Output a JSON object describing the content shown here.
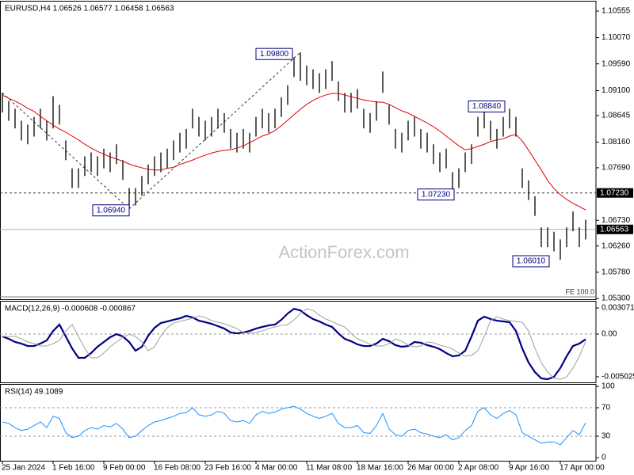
{
  "chart_data": [
    {
      "type": "ohlc",
      "title": "EURUSD,H4 1.06526 1.06577 1.06458 1.06563",
      "watermark": "ActionForex.com",
      "bar_color": "#000000",
      "categories": [
        "25 Jan 2024",
        null,
        null,
        null,
        null,
        null,
        null,
        null,
        "1 Feb 16:00",
        null,
        null,
        null,
        null,
        null,
        null,
        null,
        "9 Feb 00:00",
        null,
        null,
        null,
        null,
        null,
        null,
        null,
        "16 Feb 08:00",
        null,
        null,
        null,
        null,
        null,
        null,
        null,
        "23 Feb 16:00",
        null,
        null,
        null,
        null,
        null,
        null,
        null,
        "4 Mar 00:00",
        null,
        null,
        null,
        null,
        null,
        null,
        null,
        "11 Mar 08:00",
        null,
        null,
        null,
        null,
        null,
        null,
        null,
        "18 Mar 16:00",
        null,
        null,
        null,
        null,
        null,
        null,
        null,
        "26 Mar 00:00",
        null,
        null,
        null,
        null,
        null,
        null,
        null,
        "2 Apr 08:00",
        null,
        null,
        null,
        null,
        null,
        null,
        null,
        "9 Apr 16:00",
        null,
        null,
        null,
        null,
        null,
        null,
        null,
        "17 Apr 00:00",
        null,
        null,
        null,
        null
      ],
      "high": [
        1.0906,
        1.0891,
        1.0877,
        1.0855,
        1.0848,
        1.0862,
        1.0877,
        1.0855,
        1.09,
        1.0884,
        1.0819,
        1.0768,
        1.0768,
        1.079,
        1.0797,
        1.079,
        1.0804,
        1.0797,
        1.0812,
        1.0783,
        1.0732,
        1.0732,
        1.0754,
        1.0775,
        1.079,
        1.0797,
        1.0804,
        1.0819,
        1.0833,
        1.084,
        1.0877,
        1.0862,
        1.0855,
        1.0862,
        1.0877,
        1.0869,
        1.084,
        1.0833,
        1.084,
        1.0833,
        1.0862,
        1.0877,
        1.0869,
        1.0877,
        1.0898,
        1.092,
        1.0971,
        1.098,
        1.0956,
        1.0949,
        1.0942,
        1.0949,
        1.0964,
        1.0927,
        1.0906,
        1.0906,
        1.0913,
        1.0877,
        1.0869,
        1.0891,
        1.0945,
        1.0884,
        1.084,
        1.0833,
        1.0855,
        1.0862,
        1.084,
        1.0833,
        1.0812,
        1.0797,
        1.0804,
        1.0761,
        1.0768,
        1.0797,
        1.0812,
        1.0862,
        1.0884,
        1.0855,
        1.084,
        1.0862,
        1.0877,
        1.0862,
        1.0768,
        1.0746,
        1.0717,
        1.066,
        1.066,
        1.0652,
        1.0638,
        1.066,
        1.0689,
        1.066,
        1.0674
      ],
      "low": [
        1.087,
        1.0855,
        1.0841,
        1.0819,
        1.0812,
        1.0826,
        1.0841,
        1.0819,
        1.0841,
        1.0848,
        1.0783,
        1.0732,
        1.0732,
        1.0754,
        1.0761,
        1.0754,
        1.0768,
        1.0761,
        1.0776,
        1.0747,
        1.0694,
        1.07,
        1.0718,
        1.0739,
        1.0754,
        1.0761,
        1.0768,
        1.0783,
        1.0797,
        1.0804,
        1.0841,
        1.0826,
        1.0819,
        1.0826,
        1.0841,
        1.0833,
        1.0804,
        1.0797,
        1.0804,
        1.0797,
        1.0826,
        1.0841,
        1.0833,
        1.0841,
        1.0862,
        1.0884,
        1.0935,
        1.0928,
        1.092,
        1.0913,
        1.0906,
        1.0913,
        1.0928,
        1.0891,
        1.087,
        1.087,
        1.0877,
        1.0841,
        1.0833,
        1.0855,
        1.0906,
        1.0848,
        1.0804,
        1.0797,
        1.0819,
        1.0826,
        1.0804,
        1.0797,
        1.0776,
        1.0761,
        1.0768,
        1.0723,
        1.0732,
        1.0761,
        1.0776,
        1.0826,
        1.0841,
        1.0819,
        1.0804,
        1.0826,
        1.0841,
        1.0826,
        1.0732,
        1.071,
        1.0681,
        1.0624,
        1.0624,
        1.0616,
        1.0601,
        1.0624,
        1.0653,
        1.0624,
        1.0638
      ],
      "ma": {
        "color": "#e00000",
        "values": [
          1.0902,
          1.0896,
          1.0891,
          1.0885,
          1.0878,
          1.0872,
          1.0863,
          1.0855,
          1.0847,
          1.084,
          1.0834,
          1.0827,
          1.082,
          1.0812,
          1.0805,
          1.0799,
          1.0794,
          1.0789,
          1.0785,
          1.0781,
          1.0776,
          1.0772,
          1.0769,
          1.0766,
          1.0765,
          1.0765,
          1.0768,
          1.077,
          1.0775,
          1.0779,
          1.0783,
          1.0788,
          1.0792,
          1.0796,
          1.0799,
          1.0801,
          1.0802,
          1.0805,
          1.0809,
          1.0815,
          1.0821,
          1.0827,
          1.0831,
          1.0837,
          1.0846,
          1.0856,
          1.0866,
          1.0876,
          1.0885,
          1.0892,
          1.0898,
          1.0902,
          1.0905,
          1.0905,
          1.0902,
          1.0899,
          1.0896,
          1.0893,
          1.0891,
          1.0889,
          1.0889,
          1.0885,
          1.0879,
          1.0873,
          1.0869,
          1.0863,
          1.0857,
          1.0851,
          1.0844,
          1.0836,
          1.0827,
          1.0818,
          1.0809,
          1.0802,
          1.0804,
          1.0808,
          1.0812,
          1.0817,
          1.082,
          1.0822,
          1.0827,
          1.083,
          1.0818,
          1.0801,
          1.0783,
          1.0765,
          1.0746,
          1.0731,
          1.072,
          1.0711,
          1.0704,
          1.0698,
          1.0692
        ]
      },
      "annotations": [
        {
          "text": "1.09800",
          "value": 1.098
        },
        {
          "text": "1.06940",
          "value": 1.0694
        },
        {
          "text": "1.07230",
          "value": 1.0723
        },
        {
          "text": "1.08840",
          "value": 1.0884
        },
        {
          "text": "1.06010",
          "value": 1.0601
        }
      ],
      "level": {
        "value": 1.0723,
        "label": "1.07230"
      },
      "last_price": {
        "value": 1.06563,
        "label": "1.06563"
      },
      "fe_level": {
        "value": 1.0533,
        "label": "FE 100.0"
      },
      "ylim": [
        1.05286,
        1.10729
      ],
      "yticks": [
        1.10555,
        {
          "value": 1.1007,
          "label": "1.10070"
        },
        {
          "value": 1.0959,
          "label": "1.09590"
        },
        {
          "value": 1.091,
          "label": "1.09100"
        },
        1.08645,
        {
          "value": 1.0816,
          "label": "1.08160"
        },
        {
          "value": 1.0769,
          "label": "1.07690"
        },
        {
          "value": 1.0673,
          "label": "1.06730"
        },
        {
          "value": 1.0626,
          "label": "1.06260"
        },
        {
          "value": 1.0578,
          "label": "1.05780"
        },
        {
          "value": 1.053,
          "label": "1.05300"
        }
      ]
    },
    {
      "type": "line",
      "title": "MACD(12,26,9) -0.000608 -0.000867",
      "series": [
        {
          "color": "#000080",
          "values": [
            -0.00028,
            -0.00056,
            -0.00093,
            -0.00112,
            -0.0014,
            -0.0014,
            -0.00112,
            -0.00074,
            0.00037,
            0.00112,
            -0.00028,
            -0.00168,
            -0.00279,
            -0.00279,
            -0.00223,
            -0.00149,
            -0.00093,
            -0.00037,
            0,
            -0.00028,
            -0.00093,
            -0.00196,
            -0.00149,
            -0.00019,
            0.00074,
            0.0013,
            0.00149,
            0.00168,
            0.00186,
            0.00214,
            0.00196,
            0.00158,
            0.0014,
            0.00121,
            0.00093,
            0.00065,
            0.00019,
            9e-05,
            0.00019,
            0.00037,
            0.00065,
            0.00084,
            0.00102,
            0.00112,
            0.00168,
            0.00242,
            0.00298,
            0.00279,
            0.00223,
            0.00177,
            0.00149,
            0.00112,
            0.00084,
            9e-05,
            -0.00056,
            -0.00084,
            -0.00121,
            -0.0014,
            -0.0014,
            -0.00112,
            -0.00056,
            -0.00084,
            -0.0013,
            -0.00149,
            -0.0014,
            -0.00093,
            -0.00102,
            -0.0013,
            -0.00149,
            -0.00177,
            -0.00223,
            -0.00261,
            -0.00251,
            -0.00196,
            -0.00028,
            0.00158,
            0.00205,
            0.00177,
            0.00158,
            0.00149,
            0.0014,
            0.00037,
            -0.00168,
            -0.00335,
            -0.00447,
            -0.00521,
            -0.00531,
            -0.00503,
            -0.004,
            -0.00261,
            -0.0014,
            -0.00112,
            -0.00061
          ]
        },
        {
          "color": "#a0a0a0",
          "values": [
            -0.00028,
            -0.00028,
            -0.00028,
            -0.00056,
            -0.00093,
            -0.00112,
            -0.0014,
            -0.0014,
            -0.00112,
            -0.00074,
            0.00037,
            0.00112,
            -0.00028,
            -0.00168,
            -0.00279,
            -0.00279,
            -0.00223,
            -0.00149,
            -0.00093,
            -0.00037,
            0,
            -0.00028,
            -0.00093,
            -0.00196,
            -0.00149,
            -0.00019,
            0.00074,
            0.0013,
            0.00149,
            0.00168,
            0.00186,
            0.00214,
            0.00196,
            0.00158,
            0.0014,
            0.00121,
            0.00093,
            0.00065,
            0.00019,
            9e-05,
            0.00019,
            0.00037,
            0.00065,
            0.00084,
            0.00102,
            0.00112,
            0.00168,
            0.00242,
            0.00298,
            0.00279,
            0.00223,
            0.00177,
            0.00149,
            0.00112,
            0.00084,
            9e-05,
            -0.00056,
            -0.00084,
            -0.00121,
            -0.0014,
            -0.0014,
            -0.00112,
            -0.00056,
            -0.00084,
            -0.0013,
            -0.00149,
            -0.0014,
            -0.00093,
            -0.00102,
            -0.0013,
            -0.00149,
            -0.00177,
            -0.00223,
            -0.00261,
            -0.00251,
            -0.00196,
            -0.00028,
            0.00158,
            0.00205,
            0.00177,
            0.00158,
            0.00149,
            0.0014,
            0.00037,
            -0.00168,
            -0.00335,
            -0.00447,
            -0.00521,
            -0.00531,
            -0.00503,
            -0.004,
            -0.00261,
            -0.00087
          ]
        }
      ],
      "levels": [
        0
      ],
      "ylim": [
        -0.00568,
        0.00382
      ],
      "yticks": [
        0.003071,
        {
          "value": 0,
          "label": "0.00"
        },
        -0.005025
      ]
    },
    {
      "type": "line",
      "title": "RSI(14) 49.1089",
      "series": [
        {
          "color": "#1e90ff",
          "values": [
            50,
            48,
            42,
            38,
            40,
            45,
            50,
            42,
            58,
            55,
            35,
            28,
            30,
            38,
            42,
            40,
            45,
            43,
            48,
            40,
            28,
            30,
            38,
            45,
            50,
            52,
            55,
            58,
            62,
            63,
            70,
            60,
            58,
            60,
            65,
            62,
            52,
            50,
            52,
            48,
            60,
            65,
            62,
            64,
            68,
            70,
            72,
            68,
            62,
            58,
            55,
            58,
            62,
            48,
            42,
            42,
            45,
            35,
            34,
            45,
            62,
            40,
            32,
            30,
            38,
            40,
            35,
            33,
            30,
            28,
            32,
            25,
            28,
            38,
            45,
            65,
            70,
            60,
            55,
            62,
            66,
            60,
            35,
            30,
            25,
            20,
            22,
            22,
            18,
            28,
            38,
            32,
            49.1089
          ]
        }
      ],
      "levels": [
        70,
        30
      ],
      "ylim": [
        -4.4,
        102.2
      ],
      "yticks": [
        100,
        70,
        30,
        0
      ]
    }
  ]
}
